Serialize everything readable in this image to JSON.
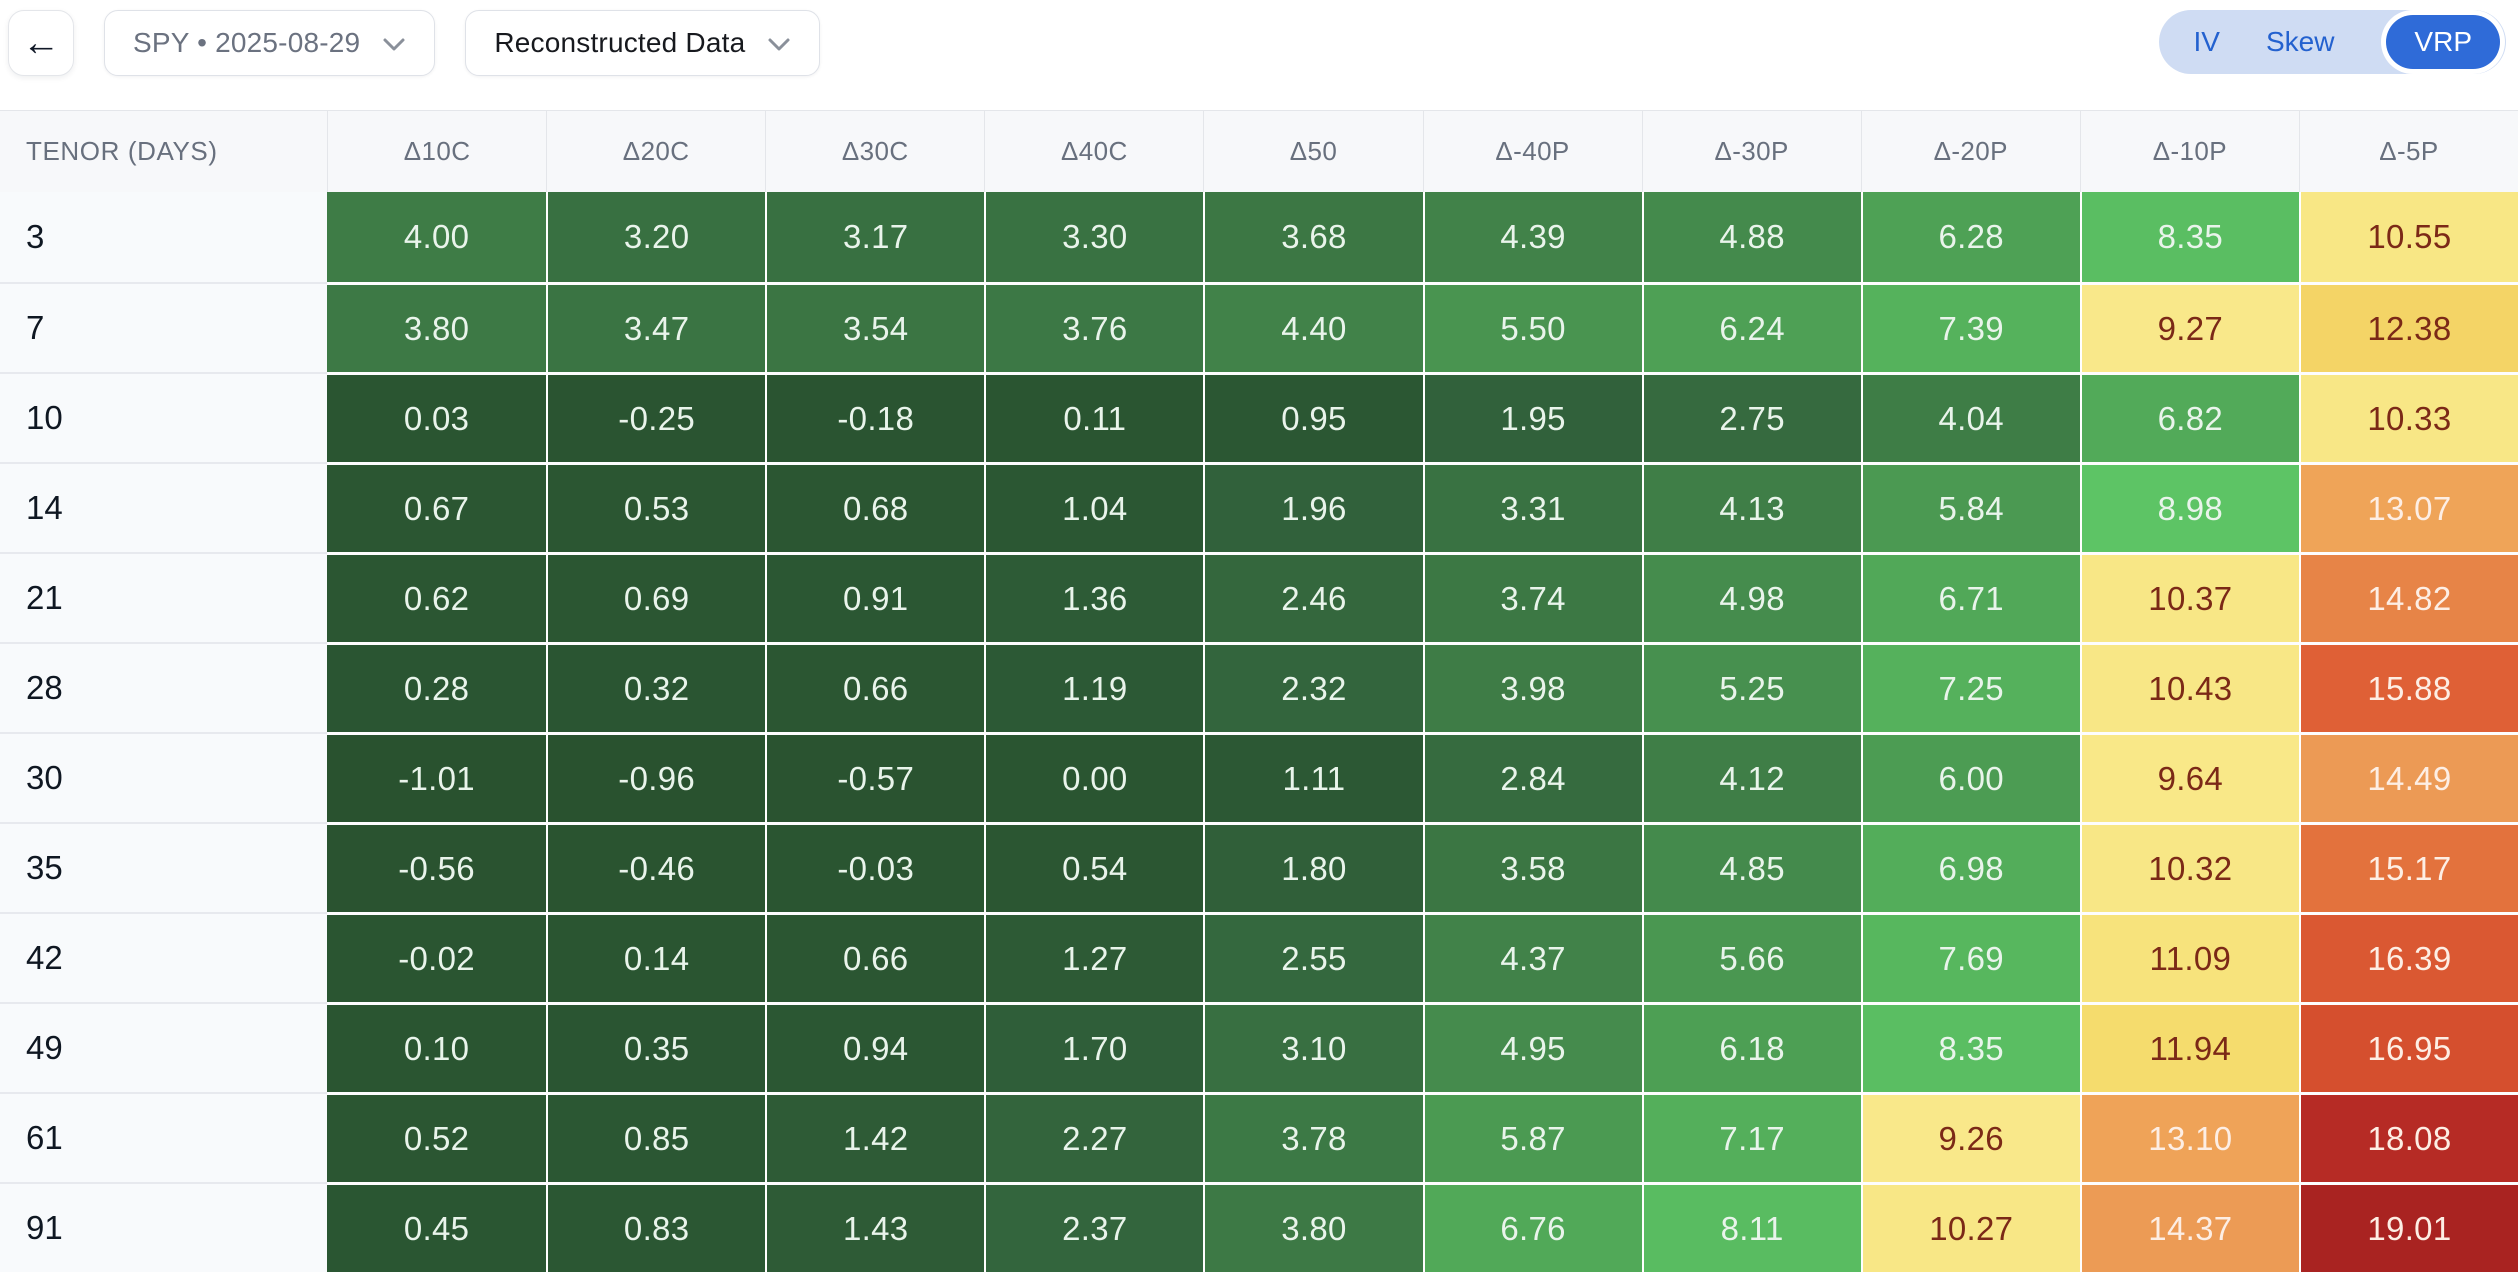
{
  "header": {
    "back_icon": "←",
    "symbol_select": {
      "value": "SPY • 2025-08-29"
    },
    "data_select": {
      "value": "Reconstructed Data"
    },
    "view_toggle": {
      "options": [
        "IV",
        "Skew",
        "VRP"
      ],
      "selected": "VRP"
    }
  },
  "colors": {
    "accent_blue": "#2f6bd8",
    "toggle_bg": "#cfdcf3",
    "toggle_text": "#2361cf",
    "table_header_bg": "#f7f8fa",
    "tenor_column_bg": "#f8fafc",
    "border": "#e4e6ea",
    "green_cell_text": "#e9f4eb",
    "yellow_cell_text": "#7b2917",
    "warm_cell_text": "#fdeee4"
  },
  "table": {
    "tenor_header": "TENOR (DAYS)",
    "columns": [
      "Δ10C",
      "Δ20C",
      "Δ30C",
      "Δ40C",
      "Δ50",
      "Δ-40P",
      "Δ-30P",
      "Δ-20P",
      "Δ-10P",
      "Δ-5P"
    ],
    "rows": [
      {
        "tenor": "3",
        "values": [
          4.0,
          3.2,
          3.17,
          3.3,
          3.68,
          4.39,
          4.88,
          6.28,
          8.35,
          10.55
        ]
      },
      {
        "tenor": "7",
        "values": [
          3.8,
          3.47,
          3.54,
          3.76,
          4.4,
          5.5,
          6.24,
          7.39,
          9.27,
          12.38
        ]
      },
      {
        "tenor": "10",
        "values": [
          0.03,
          -0.25,
          -0.18,
          0.11,
          0.95,
          1.95,
          2.75,
          4.04,
          6.82,
          10.33
        ]
      },
      {
        "tenor": "14",
        "values": [
          0.67,
          0.53,
          0.68,
          1.04,
          1.96,
          3.31,
          4.13,
          5.84,
          8.98,
          13.07
        ]
      },
      {
        "tenor": "21",
        "values": [
          0.62,
          0.69,
          0.91,
          1.36,
          2.46,
          3.74,
          4.98,
          6.71,
          10.37,
          14.82
        ]
      },
      {
        "tenor": "28",
        "values": [
          0.28,
          0.32,
          0.66,
          1.19,
          2.32,
          3.98,
          5.25,
          7.25,
          10.43,
          15.88
        ]
      },
      {
        "tenor": "30",
        "values": [
          -1.01,
          -0.96,
          -0.57,
          0.0,
          1.11,
          2.84,
          4.12,
          6.0,
          9.64,
          14.49
        ]
      },
      {
        "tenor": "35",
        "values": [
          -0.56,
          -0.46,
          -0.03,
          0.54,
          1.8,
          3.58,
          4.85,
          6.98,
          10.32,
          15.17
        ]
      },
      {
        "tenor": "42",
        "values": [
          -0.02,
          0.14,
          0.66,
          1.27,
          2.55,
          4.37,
          5.66,
          7.69,
          11.09,
          16.39
        ]
      },
      {
        "tenor": "49",
        "values": [
          0.1,
          0.35,
          0.94,
          1.7,
          3.1,
          4.95,
          6.18,
          8.35,
          11.94,
          16.95
        ]
      },
      {
        "tenor": "61",
        "values": [
          0.52,
          0.85,
          1.42,
          2.27,
          3.78,
          5.87,
          7.17,
          9.26,
          13.1,
          18.08
        ]
      },
      {
        "tenor": "91",
        "values": [
          0.45,
          0.83,
          1.43,
          2.37,
          3.8,
          6.76,
          8.11,
          10.27,
          14.37,
          19.01
        ]
      }
    ],
    "colorscale": [
      [
        -1.1,
        "#29522f"
      ],
      [
        1.0,
        "#2b5733"
      ],
      [
        2.0,
        "#31613b"
      ],
      [
        3.0,
        "#376d40"
      ],
      [
        4.0,
        "#3e7c46"
      ],
      [
        5.0,
        "#458c4d"
      ],
      [
        6.0,
        "#4c9c53"
      ],
      [
        7.0,
        "#53ad5a"
      ],
      [
        8.0,
        "#59bb60"
      ],
      [
        9.0,
        "#5dc465"
      ],
      [
        9.2,
        "#f9e88a"
      ],
      [
        10.6,
        "#f8e785"
      ],
      [
        12.0,
        "#f5dc6c"
      ],
      [
        12.6,
        "#f3cf63"
      ],
      [
        13.0,
        "#efa458"
      ],
      [
        14.5,
        "#ec9a55"
      ],
      [
        15.0,
        "#e4773f"
      ],
      [
        15.6,
        "#e16438"
      ],
      [
        17.0,
        "#d54e2e"
      ],
      [
        18.0,
        "#b72c25"
      ],
      [
        19.1,
        "#a82221"
      ]
    ],
    "text_rules": {
      "yellow_min": 9.2,
      "warm_min": 12.8
    }
  }
}
